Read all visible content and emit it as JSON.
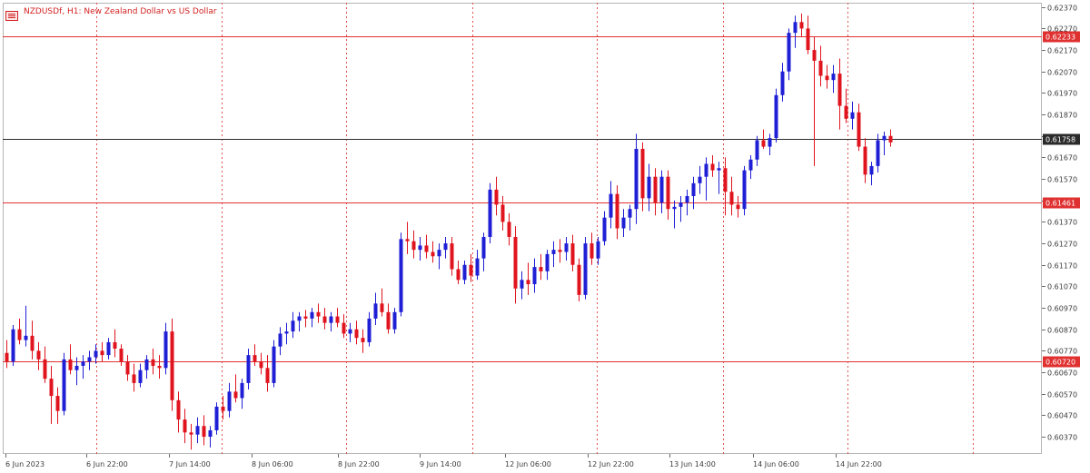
{
  "chart_data": {
    "type": "candlestick",
    "symbol": "NZDUSDf",
    "timeframe": "H1",
    "description": "New Zealand Dollar vs US Dollar",
    "title": "NZDUSDf, H1:  New Zealand Dollar vs US Dollar",
    "ylim": [
      0.6029,
      0.6239
    ],
    "y_ticks": [
      "0.62370",
      "0.62270",
      "0.62170",
      "0.62070",
      "0.61970",
      "0.61870",
      "0.61770",
      "0.61670",
      "0.61570",
      "0.61470",
      "0.61370",
      "0.61270",
      "0.61170",
      "0.61070",
      "0.60970",
      "0.60870",
      "0.60770",
      "0.60670",
      "0.60570",
      "0.60470",
      "0.60370"
    ],
    "x_ticks": [
      "6 Jun 2023",
      "6 Jun 22:00",
      "7 Jun 14:00",
      "8 Jun 06:00",
      "8 Jun 22:00",
      "9 Jun 14:00",
      "12 Jun 06:00",
      "12 Jun 22:00",
      "13 Jun 14:00",
      "14 Jun 06:00",
      "14 Jun 22:00"
    ],
    "horizontal_lines": [
      {
        "value": "0.62233",
        "color": "#e03131"
      },
      {
        "value": "0.61758",
        "color": "#2b2b2b"
      },
      {
        "value": "0.61461",
        "color": "#e03131"
      },
      {
        "value": "0.60720",
        "color": "#e03131"
      }
    ],
    "candles": [
      [
        0.6076,
        0.6082,
        0.6069,
        0.6072
      ],
      [
        0.6072,
        0.6089,
        0.607,
        0.6087
      ],
      [
        0.6087,
        0.6092,
        0.608,
        0.6082
      ],
      [
        0.6082,
        0.6098,
        0.6079,
        0.6084
      ],
      [
        0.6084,
        0.6091,
        0.6073,
        0.6077
      ],
      [
        0.6077,
        0.6081,
        0.6068,
        0.6073
      ],
      [
        0.6073,
        0.6079,
        0.6062,
        0.6064
      ],
      [
        0.6064,
        0.607,
        0.6043,
        0.6056
      ],
      [
        0.6056,
        0.606,
        0.6043,
        0.6049
      ],
      [
        0.6049,
        0.6076,
        0.6047,
        0.6073
      ],
      [
        0.6073,
        0.608,
        0.6066,
        0.6068
      ],
      [
        0.6068,
        0.6074,
        0.6061,
        0.607
      ],
      [
        0.607,
        0.6075,
        0.6064,
        0.6072
      ],
      [
        0.6072,
        0.6077,
        0.6068,
        0.6074
      ],
      [
        0.6074,
        0.608,
        0.6071,
        0.6077
      ],
      [
        0.6077,
        0.6081,
        0.6072,
        0.6075
      ],
      [
        0.6075,
        0.6083,
        0.6073,
        0.6081
      ],
      [
        0.6081,
        0.6087,
        0.6074,
        0.6078
      ],
      [
        0.6078,
        0.608,
        0.607,
        0.6072
      ],
      [
        0.6072,
        0.6075,
        0.6063,
        0.6066
      ],
      [
        0.6066,
        0.6071,
        0.6058,
        0.6062
      ],
      [
        0.6062,
        0.6071,
        0.606,
        0.6068
      ],
      [
        0.6068,
        0.6075,
        0.6064,
        0.6073
      ],
      [
        0.6073,
        0.6078,
        0.6066,
        0.607
      ],
      [
        0.607,
        0.6075,
        0.6064,
        0.6069
      ],
      [
        0.6069,
        0.609,
        0.6066,
        0.6086
      ],
      [
        0.6086,
        0.6092,
        0.6049,
        0.6054
      ],
      [
        0.6054,
        0.6058,
        0.6039,
        0.6045
      ],
      [
        0.6045,
        0.605,
        0.6034,
        0.6039
      ],
      [
        0.6039,
        0.6043,
        0.6031,
        0.6038
      ],
      [
        0.6038,
        0.6046,
        0.6034,
        0.6042
      ],
      [
        0.6042,
        0.6047,
        0.6033,
        0.6037
      ],
      [
        0.6037,
        0.6042,
        0.6032,
        0.604
      ],
      [
        0.604,
        0.6053,
        0.6038,
        0.6051
      ],
      [
        0.6051,
        0.6056,
        0.6045,
        0.6049
      ],
      [
        0.6049,
        0.6062,
        0.6046,
        0.6058
      ],
      [
        0.6058,
        0.6066,
        0.6053,
        0.6055
      ],
      [
        0.6055,
        0.6064,
        0.605,
        0.6062
      ],
      [
        0.6062,
        0.6078,
        0.6059,
        0.6075
      ],
      [
        0.6075,
        0.608,
        0.607,
        0.6072
      ],
      [
        0.6072,
        0.6076,
        0.6066,
        0.6069
      ],
      [
        0.6069,
        0.6075,
        0.6058,
        0.6062
      ],
      [
        0.6062,
        0.6082,
        0.606,
        0.6079
      ],
      [
        0.6079,
        0.6088,
        0.6075,
        0.6085
      ],
      [
        0.6085,
        0.609,
        0.608,
        0.6086
      ],
      [
        0.6086,
        0.6095,
        0.6083,
        0.6091
      ],
      [
        0.6091,
        0.6095,
        0.6086,
        0.6093
      ],
      [
        0.6093,
        0.6096,
        0.6088,
        0.6092
      ],
      [
        0.6092,
        0.6097,
        0.6088,
        0.6095
      ],
      [
        0.6095,
        0.6099,
        0.609,
        0.6093
      ],
      [
        0.6093,
        0.6097,
        0.6087,
        0.609
      ],
      [
        0.609,
        0.6095,
        0.6086,
        0.6093
      ],
      [
        0.6093,
        0.6097,
        0.6088,
        0.609
      ],
      [
        0.609,
        0.6094,
        0.6083,
        0.6085
      ],
      [
        0.6085,
        0.609,
        0.6081,
        0.6087
      ],
      [
        0.6087,
        0.6091,
        0.608,
        0.6083
      ],
      [
        0.6083,
        0.6087,
        0.6076,
        0.6081
      ],
      [
        0.6081,
        0.6095,
        0.6079,
        0.6092
      ],
      [
        0.6092,
        0.6104,
        0.6089,
        0.6099
      ],
      [
        0.6099,
        0.6106,
        0.6093,
        0.6095
      ],
      [
        0.6095,
        0.6099,
        0.6085,
        0.6087
      ],
      [
        0.6087,
        0.6097,
        0.6085,
        0.6095
      ],
      [
        0.6095,
        0.6132,
        0.6093,
        0.6129
      ],
      [
        0.6129,
        0.6137,
        0.6122,
        0.6128
      ],
      [
        0.6128,
        0.6133,
        0.612,
        0.6124
      ],
      [
        0.6124,
        0.613,
        0.6119,
        0.6126
      ],
      [
        0.6126,
        0.6131,
        0.612,
        0.6123
      ],
      [
        0.6123,
        0.6128,
        0.6118,
        0.6121
      ],
      [
        0.6121,
        0.6127,
        0.6115,
        0.6124
      ],
      [
        0.6124,
        0.613,
        0.612,
        0.6127
      ],
      [
        0.6127,
        0.613,
        0.6112,
        0.6115
      ],
      [
        0.6115,
        0.6119,
        0.6108,
        0.611
      ],
      [
        0.611,
        0.6119,
        0.6108,
        0.6117
      ],
      [
        0.6117,
        0.6122,
        0.6109,
        0.6112
      ],
      [
        0.6112,
        0.6124,
        0.611,
        0.612
      ],
      [
        0.612,
        0.6132,
        0.6114,
        0.613
      ],
      [
        0.613,
        0.6155,
        0.6127,
        0.6152
      ],
      [
        0.6152,
        0.6158,
        0.614,
        0.6145
      ],
      [
        0.6145,
        0.6149,
        0.6133,
        0.6137
      ],
      [
        0.6137,
        0.6141,
        0.6126,
        0.613
      ],
      [
        0.613,
        0.6135,
        0.6099,
        0.6106
      ],
      [
        0.6106,
        0.6114,
        0.6101,
        0.611
      ],
      [
        0.611,
        0.6118,
        0.6103,
        0.6108
      ],
      [
        0.6108,
        0.612,
        0.6104,
        0.6116
      ],
      [
        0.6116,
        0.6122,
        0.611,
        0.6114
      ],
      [
        0.6114,
        0.6124,
        0.611,
        0.6122
      ],
      [
        0.6122,
        0.6128,
        0.6116,
        0.6124
      ],
      [
        0.6124,
        0.6129,
        0.6118,
        0.6123
      ],
      [
        0.6123,
        0.613,
        0.6119,
        0.6127
      ],
      [
        0.6127,
        0.6131,
        0.6114,
        0.6117
      ],
      [
        0.6117,
        0.612,
        0.61,
        0.6103
      ],
      [
        0.6103,
        0.613,
        0.6101,
        0.6127
      ],
      [
        0.6127,
        0.6132,
        0.6117,
        0.612
      ],
      [
        0.612,
        0.613,
        0.6117,
        0.6128
      ],
      [
        0.6128,
        0.6142,
        0.6126,
        0.6139
      ],
      [
        0.6139,
        0.6156,
        0.6134,
        0.615
      ],
      [
        0.615,
        0.6154,
        0.6129,
        0.6134
      ],
      [
        0.6134,
        0.6143,
        0.613,
        0.6139
      ],
      [
        0.6139,
        0.6145,
        0.6133,
        0.6143
      ],
      [
        0.6143,
        0.6178,
        0.6136,
        0.6171
      ],
      [
        0.6171,
        0.6174,
        0.6142,
        0.6148
      ],
      [
        0.6148,
        0.6164,
        0.6142,
        0.6158
      ],
      [
        0.6158,
        0.6162,
        0.614,
        0.6146
      ],
      [
        0.6146,
        0.6161,
        0.6141,
        0.6158
      ],
      [
        0.6158,
        0.6161,
        0.6138,
        0.6143
      ],
      [
        0.6143,
        0.6147,
        0.6134,
        0.6144
      ],
      [
        0.6144,
        0.6149,
        0.6137,
        0.6146
      ],
      [
        0.6146,
        0.6152,
        0.614,
        0.6149
      ],
      [
        0.6149,
        0.6158,
        0.6143,
        0.6155
      ],
      [
        0.6155,
        0.6163,
        0.615,
        0.6158
      ],
      [
        0.6158,
        0.6167,
        0.6147,
        0.6164
      ],
      [
        0.6164,
        0.6168,
        0.6158,
        0.6161
      ],
      [
        0.6161,
        0.6165,
        0.615,
        0.6162
      ],
      [
        0.6162,
        0.6167,
        0.614,
        0.6151
      ],
      [
        0.6151,
        0.6158,
        0.614,
        0.6145
      ],
      [
        0.6145,
        0.6149,
        0.6139,
        0.6143
      ],
      [
        0.6143,
        0.6163,
        0.614,
        0.6161
      ],
      [
        0.6161,
        0.6168,
        0.6157,
        0.6166
      ],
      [
        0.6166,
        0.6177,
        0.6163,
        0.6175
      ],
      [
        0.6175,
        0.618,
        0.6171,
        0.6172
      ],
      [
        0.6172,
        0.6178,
        0.6168,
        0.6176
      ],
      [
        0.6176,
        0.6199,
        0.6174,
        0.6196
      ],
      [
        0.6196,
        0.6211,
        0.6193,
        0.6207
      ],
      [
        0.6207,
        0.6227,
        0.6203,
        0.6225
      ],
      [
        0.6225,
        0.6233,
        0.6218,
        0.623
      ],
      [
        0.623,
        0.6234,
        0.6223,
        0.6227
      ],
      [
        0.6227,
        0.6233,
        0.6215,
        0.6217
      ],
      [
        0.6217,
        0.6223,
        0.6163,
        0.6212
      ],
      [
        0.6212,
        0.6219,
        0.62,
        0.6205
      ],
      [
        0.6205,
        0.621,
        0.6199,
        0.6203
      ],
      [
        0.6203,
        0.621,
        0.6197,
        0.6206
      ],
      [
        0.6206,
        0.6213,
        0.618,
        0.6191
      ],
      [
        0.6191,
        0.6199,
        0.6183,
        0.6185
      ],
      [
        0.6185,
        0.6193,
        0.618,
        0.6188
      ],
      [
        0.6188,
        0.6192,
        0.617,
        0.6172
      ],
      [
        0.6172,
        0.6176,
        0.6155,
        0.6159
      ],
      [
        0.6159,
        0.6165,
        0.6154,
        0.6163
      ],
      [
        0.6163,
        0.6178,
        0.616,
        0.6175
      ],
      [
        0.6175,
        0.6179,
        0.6168,
        0.6177
      ],
      [
        0.6177,
        0.618,
        0.6172,
        0.6174
      ]
    ]
  }
}
